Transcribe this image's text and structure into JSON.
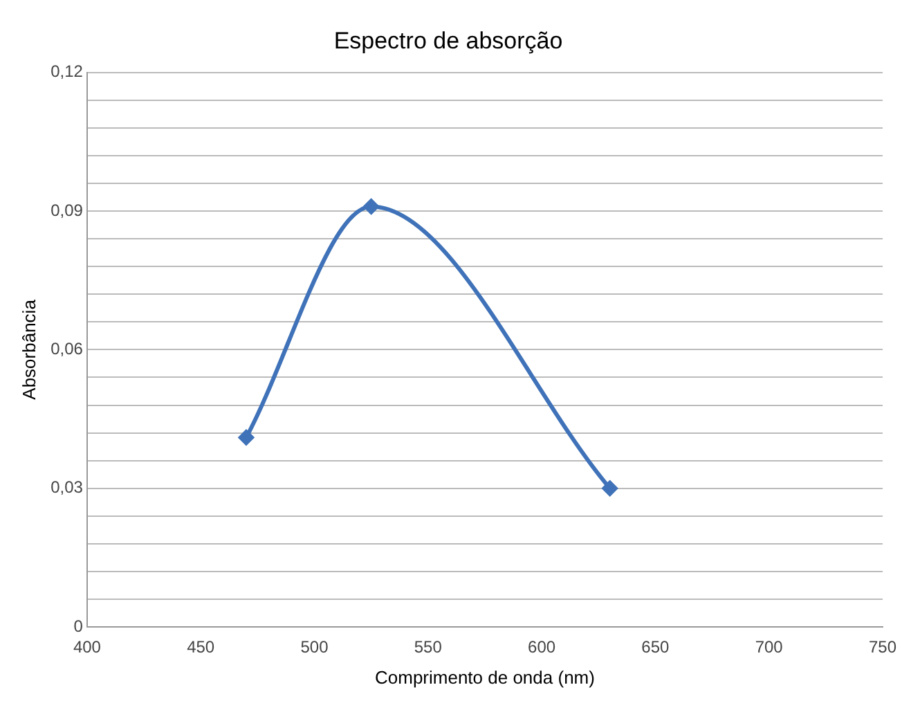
{
  "chart_data": {
    "type": "line",
    "title": "Espectro de absorção",
    "xlabel": "Comprimento de onda (nm)",
    "ylabel": "Absorbância",
    "x": [
      470,
      525,
      630
    ],
    "series": [
      {
        "color": "#3f72b8",
        "values": [
          0.041,
          0.091,
          0.03
        ]
      }
    ],
    "xlim": [
      400,
      750
    ],
    "xticks": [
      400,
      450,
      500,
      550,
      600,
      650,
      700,
      750
    ],
    "ylim": [
      0,
      0.12
    ],
    "yticks": [
      {
        "value": 0,
        "label": "0"
      },
      {
        "value": 0.006,
        "label": null
      },
      {
        "value": 0.012,
        "label": null
      },
      {
        "value": 0.018,
        "label": null
      },
      {
        "value": 0.024,
        "label": null
      },
      {
        "value": 0.03,
        "label": "0,03"
      },
      {
        "value": 0.036,
        "label": null
      },
      {
        "value": 0.042,
        "label": null
      },
      {
        "value": 0.048,
        "label": null
      },
      {
        "value": 0.054,
        "label": null
      },
      {
        "value": 0.06,
        "label": "0,06"
      },
      {
        "value": 0.066,
        "label": null
      },
      {
        "value": 0.072,
        "label": null
      },
      {
        "value": 0.078,
        "label": null
      },
      {
        "value": 0.084,
        "label": null
      },
      {
        "value": 0.09,
        "label": "0,09"
      },
      {
        "value": 0.096,
        "label": null
      },
      {
        "value": 0.102,
        "label": null
      },
      {
        "value": 0.108,
        "label": null
      },
      {
        "value": 0.114,
        "label": null
      },
      {
        "value": 0.12,
        "label": "0,12"
      }
    ],
    "grid": "y",
    "legend": false,
    "marker": "diamond",
    "line_style": "solid"
  }
}
